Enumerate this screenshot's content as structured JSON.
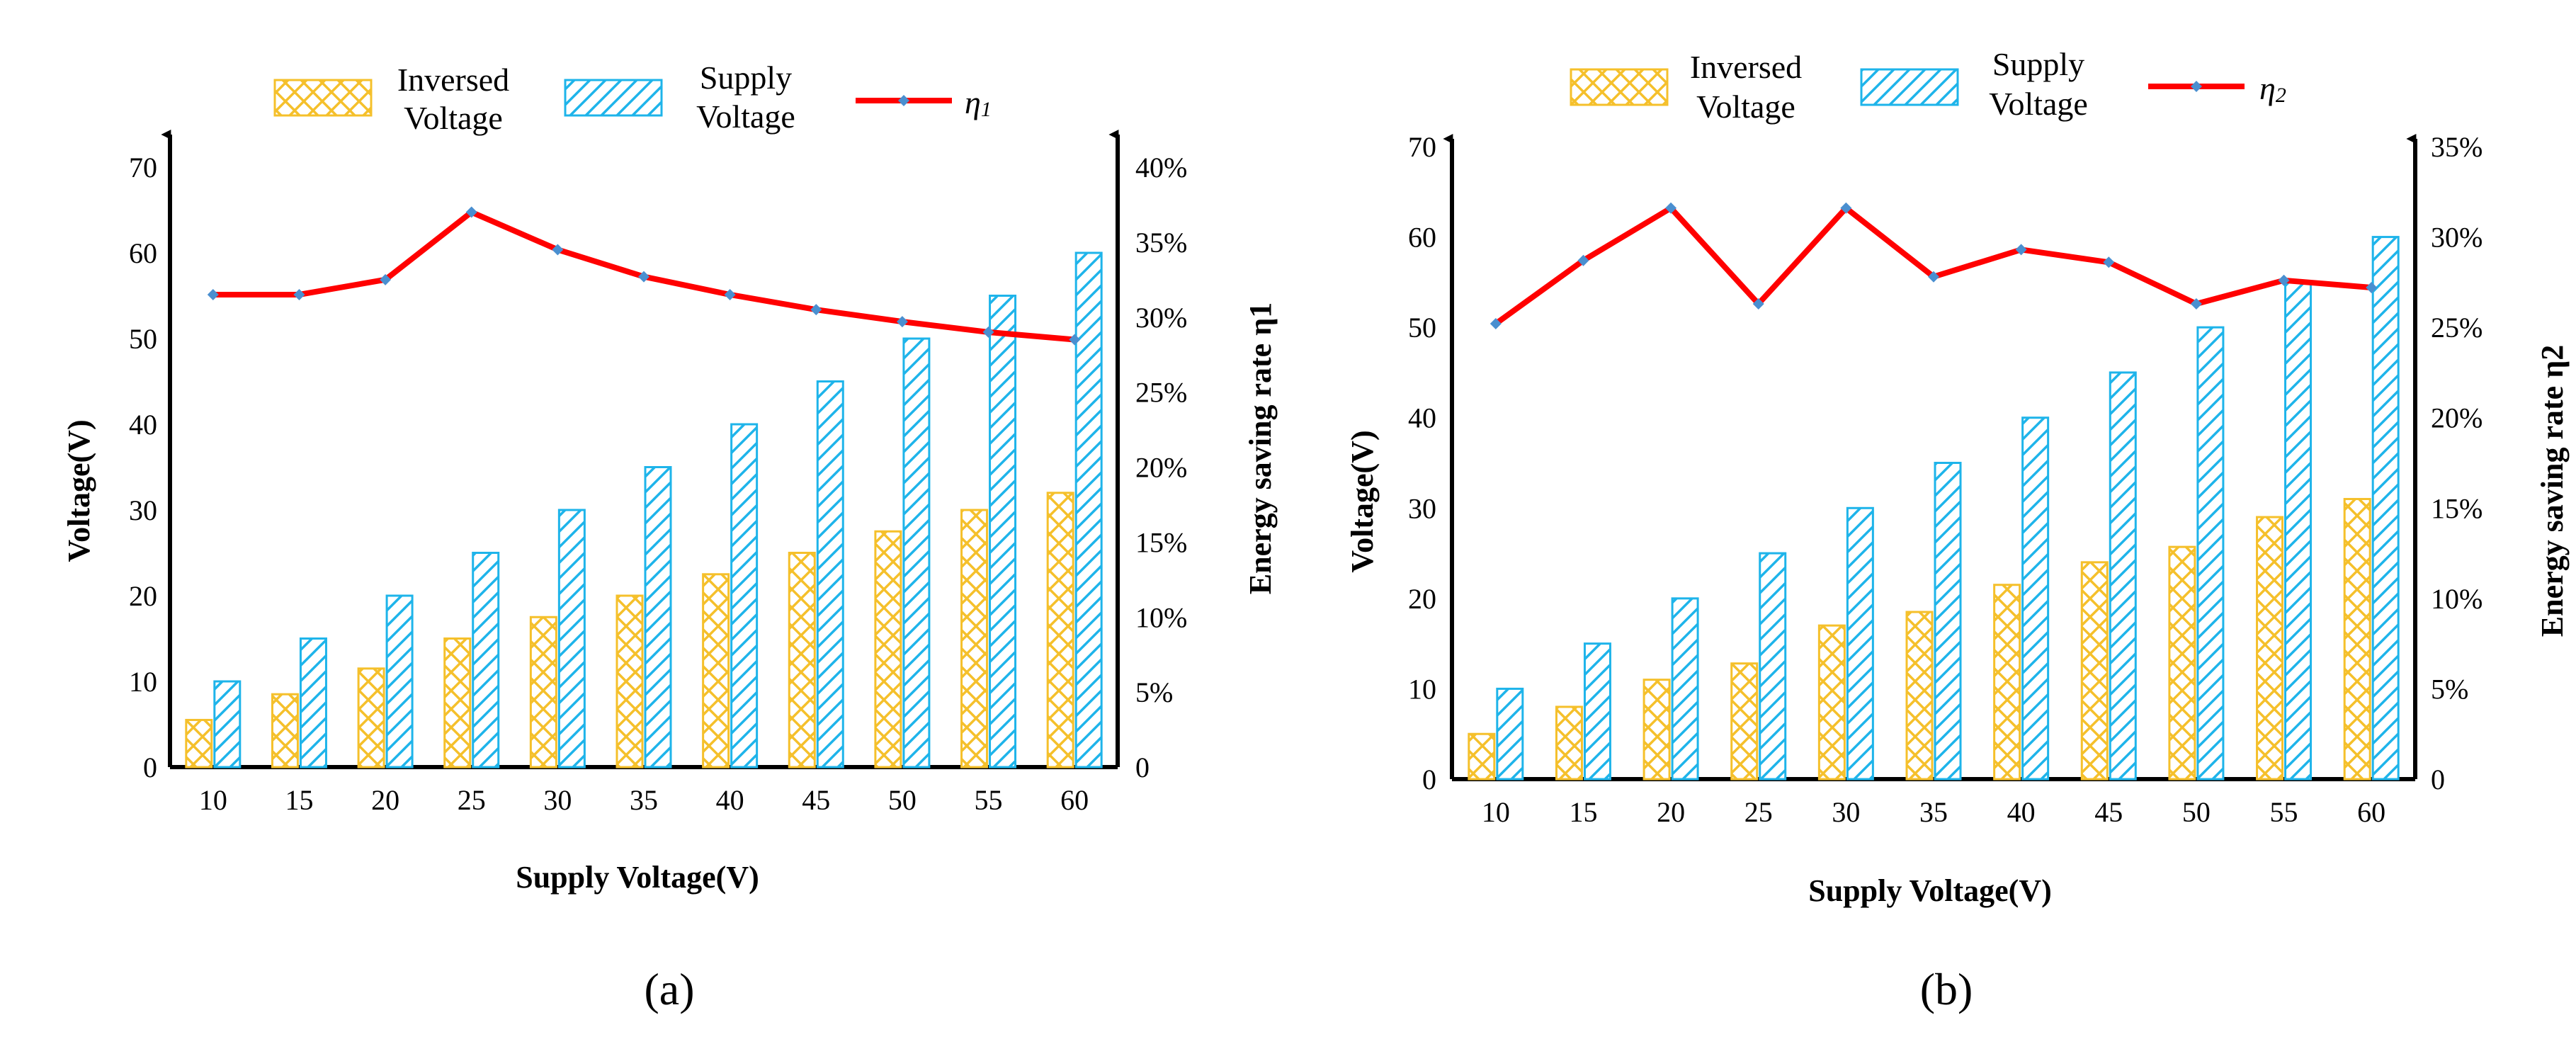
{
  "chart_data": [
    {
      "type": "bar",
      "caption": "(a)",
      "categories": [
        "10",
        "15",
        "20",
        "25",
        "30",
        "35",
        "40",
        "45",
        "50",
        "55",
        "60"
      ],
      "series": [
        {
          "name": "Inversed Voltage",
          "legend_lines": [
            "Inversed",
            "Voltage"
          ],
          "axis": "left",
          "kind": "bar",
          "pattern": "crosshatch",
          "color": "#F5C02B",
          "values": [
            5.5,
            8.5,
            11.5,
            15,
            17.5,
            20,
            22.5,
            25,
            27.5,
            30,
            32
          ]
        },
        {
          "name": "Supply Voltage",
          "legend_lines": [
            "Supply",
            "Voltage"
          ],
          "axis": "left",
          "kind": "bar",
          "pattern": "diagonal",
          "color": "#1EB4EA",
          "values": [
            10,
            15,
            20,
            25,
            30,
            35,
            40,
            45,
            50,
            55,
            60
          ]
        },
        {
          "name": "η1",
          "legend_main": "η",
          "legend_sub": "1",
          "axis": "right",
          "kind": "line",
          "color": "#FF0000",
          "marker_color": "#4A8FD0",
          "values": [
            31.5,
            31.5,
            32.5,
            37,
            34.5,
            32.7,
            31.5,
            30.5,
            29.7,
            29,
            28.5
          ]
        }
      ],
      "xlabel": "Supply Voltage(V)",
      "ylabel": "Voltage(V)",
      "ylabel_right": "Energy saving rate η1",
      "ylim": [
        0,
        70
      ],
      "yticks": [
        "0",
        "10",
        "20",
        "30",
        "40",
        "50",
        "60",
        "70"
      ],
      "ylim_right": [
        0,
        40
      ],
      "yticks_right": [
        "0",
        "5%",
        "10%",
        "15%",
        "20%",
        "25%",
        "30%",
        "35%",
        "40%"
      ]
    },
    {
      "type": "bar",
      "caption": "(b)",
      "categories": [
        "10",
        "15",
        "20",
        "25",
        "30",
        "35",
        "40",
        "45",
        "50",
        "55",
        "60"
      ],
      "series": [
        {
          "name": "Inversed Voltage",
          "legend_lines": [
            "Inversed",
            "Voltage"
          ],
          "axis": "left",
          "kind": "bar",
          "pattern": "crosshatch",
          "color": "#F5C02B",
          "values": [
            5,
            8,
            11,
            12.8,
            17,
            18.5,
            21.5,
            24,
            25.7,
            29,
            31
          ]
        },
        {
          "name": "Supply Voltage",
          "legend_lines": [
            "Supply",
            "Voltage"
          ],
          "axis": "left",
          "kind": "bar",
          "pattern": "diagonal",
          "color": "#1EB4EA",
          "values": [
            10,
            15,
            20,
            25,
            30,
            35,
            40,
            45,
            50,
            55,
            60
          ]
        },
        {
          "name": "η2",
          "legend_main": "η",
          "legend_sub": "2",
          "axis": "right",
          "kind": "line",
          "color": "#FF0000",
          "marker_color": "#4A8FD0",
          "values": [
            25.2,
            28.7,
            31.6,
            26.3,
            31.6,
            27.8,
            29.3,
            28.6,
            26.3,
            27.6,
            27.2
          ]
        }
      ],
      "xlabel": "Supply Voltage(V)",
      "ylabel": "Voltage(V)",
      "ylabel_right": "Energy saving rate η2",
      "ylim": [
        0,
        70
      ],
      "yticks": [
        "0",
        "10",
        "20",
        "30",
        "40",
        "50",
        "60",
        "70"
      ],
      "ylim_right": [
        0,
        35
      ],
      "yticks_right": [
        "0",
        "5%",
        "10%",
        "15%",
        "20%",
        "25%",
        "30%",
        "35%"
      ]
    }
  ]
}
